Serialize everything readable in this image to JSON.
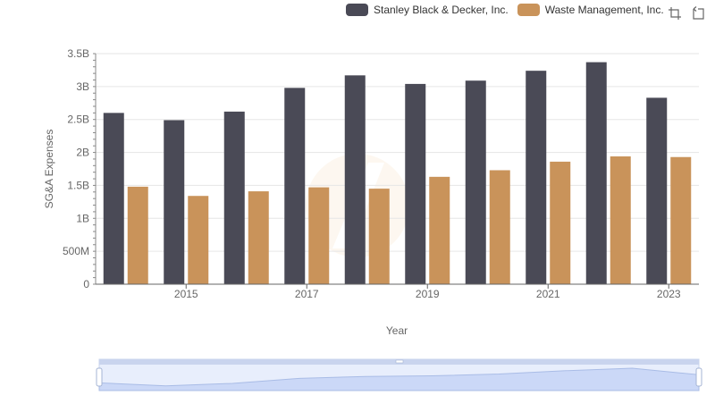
{
  "legend": {
    "items": [
      {
        "label": "Stanley Black & Decker, Inc.",
        "color": "#4a4a56"
      },
      {
        "label": "Waste Management, Inc.",
        "color": "#c9935a"
      }
    ]
  },
  "toolbox": {
    "icons": [
      "zoom-icon",
      "restore-icon"
    ]
  },
  "chart_data": {
    "type": "bar",
    "categories": [
      "2014",
      "2015",
      "2016",
      "2017",
      "2018",
      "2019",
      "2020",
      "2021",
      "2022",
      "2023"
    ],
    "x_tick_labels": [
      "2015",
      "2017",
      "2019",
      "2021",
      "2023"
    ],
    "series": [
      {
        "name": "Stanley Black & Decker, Inc.",
        "color": "#4a4a56",
        "values": [
          2.6,
          2.49,
          2.62,
          2.98,
          3.17,
          3.04,
          3.09,
          3.24,
          3.37,
          2.83
        ]
      },
      {
        "name": "Waste Management, Inc.",
        "color": "#c9935a",
        "values": [
          1.48,
          1.34,
          1.41,
          1.47,
          1.45,
          1.63,
          1.73,
          1.86,
          1.94,
          1.93
        ]
      }
    ],
    "y_ticks": [
      0,
      0.5,
      1,
      1.5,
      2,
      2.5,
      3,
      3.5
    ],
    "y_tick_labels": [
      "0",
      "500M",
      "1B",
      "1.5B",
      "2B",
      "2.5B",
      "3B",
      "3.5B"
    ],
    "ylim": [
      0,
      3.5
    ],
    "xlabel": "Year",
    "ylabel": "SG&A Expenses",
    "grid": true,
    "legend_position": "top-right",
    "dataZoom": {
      "start": 0,
      "end": 100
    }
  }
}
